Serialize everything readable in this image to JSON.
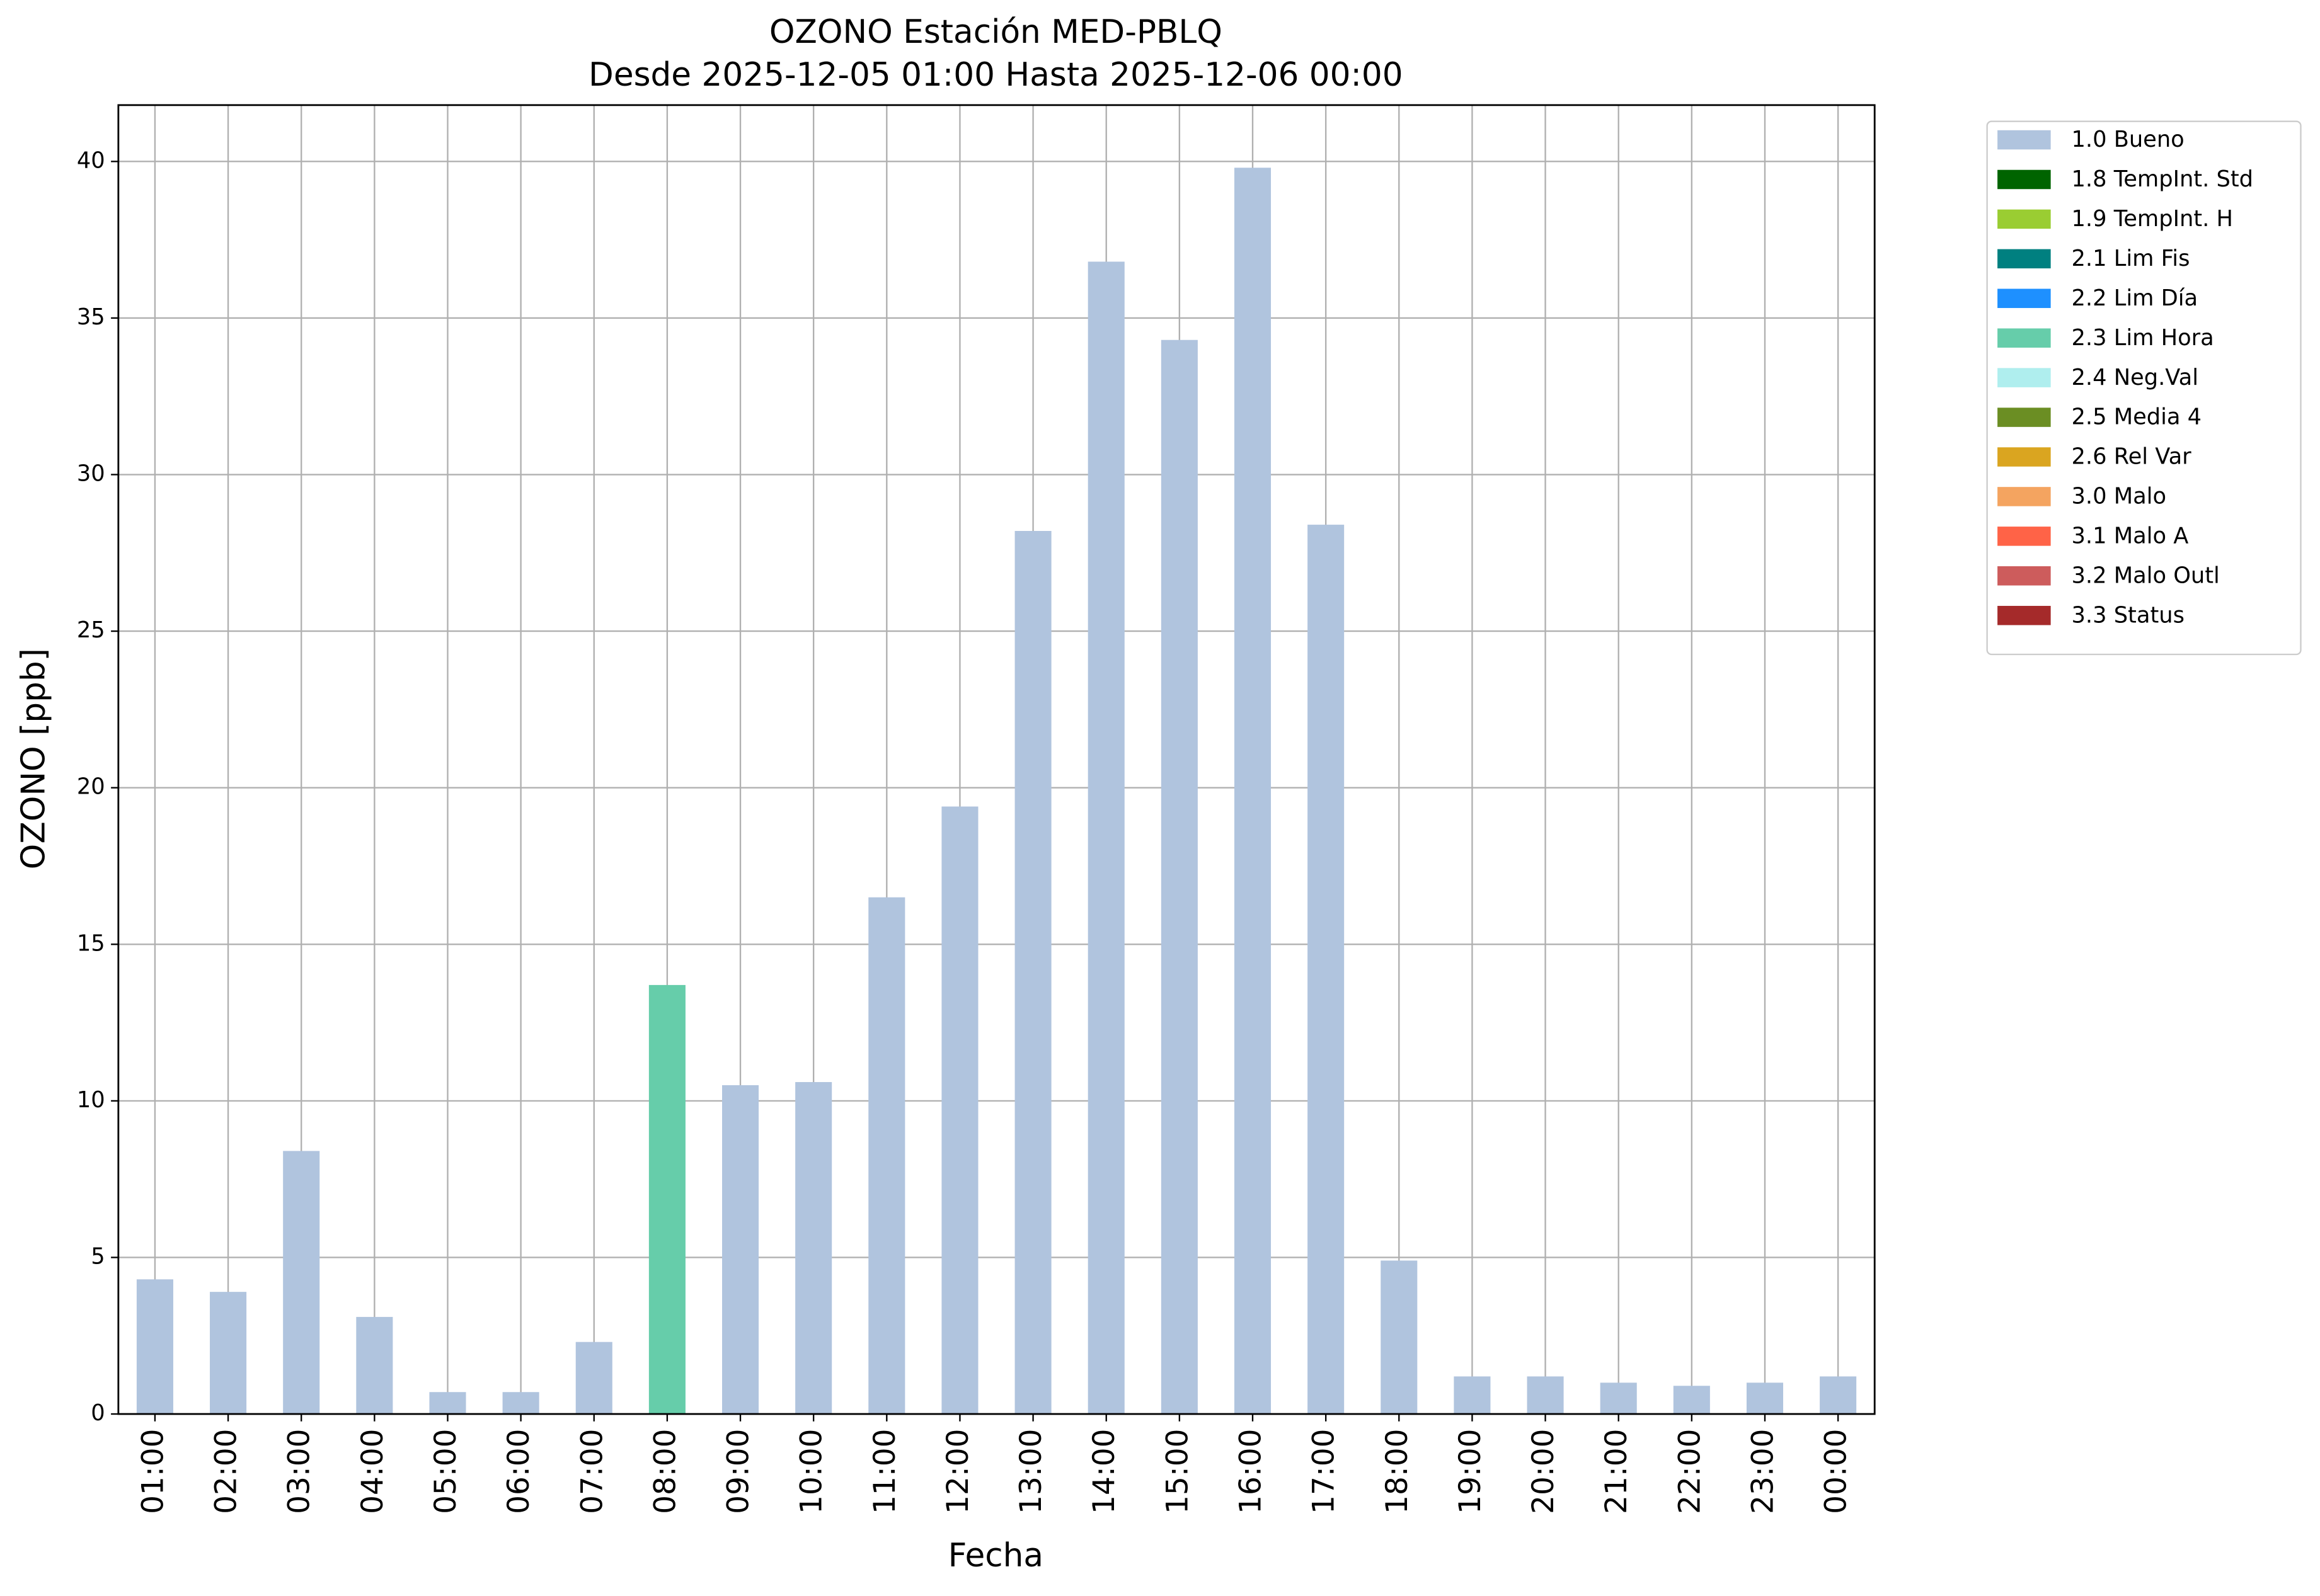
{
  "chart_data": {
    "type": "stacked_bar",
    "title": "OZONO Estación MED-PBLQ",
    "subtitle": "Desde 2025-12-05 01:00 Hasta 2025-12-06 00:00",
    "x_label": "Fecha",
    "y_label": "OZONO [ppb]",
    "categories": [
      "01:00",
      "02:00",
      "03:00",
      "04:00",
      "05:00",
      "06:00",
      "07:00",
      "08:00",
      "09:00",
      "10:00",
      "11:00",
      "12:00",
      "13:00",
      "14:00",
      "15:00",
      "16:00",
      "17:00",
      "18:00",
      "19:00",
      "20:00",
      "21:00",
      "22:00",
      "23:00",
      "00:00"
    ],
    "series": [
      {
        "name": "1.0 Bueno",
        "color": "#b0c4de",
        "values": [
          4.3,
          3.9,
          8.4,
          3.1,
          0.7,
          0.7,
          2.3,
          null,
          10.5,
          10.6,
          16.5,
          19.4,
          28.2,
          36.8,
          34.3,
          39.8,
          28.4,
          4.9,
          1.2,
          1.2,
          1.0,
          0.9,
          1.0,
          1.2
        ]
      },
      {
        "name": "1.8 TempInt. Std",
        "color": "#006400",
        "values": [
          null,
          null,
          null,
          null,
          null,
          null,
          null,
          null,
          null,
          null,
          null,
          null,
          null,
          null,
          null,
          null,
          null,
          null,
          null,
          null,
          null,
          null,
          null,
          null
        ]
      },
      {
        "name": "1.9 TempInt. H",
        "color": "#9acd32",
        "values": [
          null,
          null,
          null,
          null,
          null,
          null,
          null,
          null,
          null,
          null,
          null,
          null,
          null,
          null,
          null,
          null,
          null,
          null,
          null,
          null,
          null,
          null,
          null,
          null
        ]
      },
      {
        "name": "2.1 Lim Fis",
        "color": "#008080",
        "values": [
          null,
          null,
          null,
          null,
          null,
          null,
          null,
          null,
          null,
          null,
          null,
          null,
          null,
          null,
          null,
          null,
          null,
          null,
          null,
          null,
          null,
          null,
          null,
          null
        ]
      },
      {
        "name": "2.2 Lim Día",
        "color": "#1e90ff",
        "values": [
          null,
          null,
          null,
          null,
          null,
          null,
          null,
          null,
          null,
          null,
          null,
          null,
          null,
          null,
          null,
          null,
          null,
          null,
          null,
          null,
          null,
          null,
          null,
          null
        ]
      },
      {
        "name": "2.3 Lim Hora",
        "color": "#66cdaa",
        "values": [
          null,
          null,
          null,
          null,
          null,
          null,
          null,
          13.7,
          null,
          null,
          null,
          null,
          null,
          null,
          null,
          null,
          null,
          null,
          null,
          null,
          null,
          null,
          null,
          null
        ]
      },
      {
        "name": "2.4 Neg.Val",
        "color": "#afeeee",
        "values": [
          null,
          null,
          null,
          null,
          null,
          null,
          null,
          null,
          null,
          null,
          null,
          null,
          null,
          null,
          null,
          null,
          null,
          null,
          null,
          null,
          null,
          null,
          null,
          null
        ]
      },
      {
        "name": "2.5 Media 4",
        "color": "#6b8e23",
        "values": [
          null,
          null,
          null,
          null,
          null,
          null,
          null,
          null,
          null,
          null,
          null,
          null,
          null,
          null,
          null,
          null,
          null,
          null,
          null,
          null,
          null,
          null,
          null,
          null
        ]
      },
      {
        "name": "2.6 Rel Var",
        "color": "#daa520",
        "values": [
          null,
          null,
          null,
          null,
          null,
          null,
          null,
          null,
          null,
          null,
          null,
          null,
          null,
          null,
          null,
          null,
          null,
          null,
          null,
          null,
          null,
          null,
          null,
          null
        ]
      },
      {
        "name": "3.0 Malo",
        "color": "#f4a460",
        "values": [
          null,
          null,
          null,
          null,
          null,
          null,
          null,
          null,
          null,
          null,
          null,
          null,
          null,
          null,
          null,
          null,
          null,
          null,
          null,
          null,
          null,
          null,
          null,
          null
        ]
      },
      {
        "name": "3.1 Malo A",
        "color": "#ff6347",
        "values": [
          null,
          null,
          null,
          null,
          null,
          null,
          null,
          null,
          null,
          null,
          null,
          null,
          null,
          null,
          null,
          null,
          null,
          null,
          null,
          null,
          null,
          null,
          null,
          null
        ]
      },
      {
        "name": "3.2 Malo Outl",
        "color": "#cd5c5c",
        "values": [
          null,
          null,
          null,
          null,
          null,
          null,
          null,
          null,
          null,
          null,
          null,
          null,
          null,
          null,
          null,
          null,
          null,
          null,
          null,
          null,
          null,
          null,
          null,
          null
        ]
      },
      {
        "name": "3.3 Status",
        "color": "#a52a2a",
        "values": [
          null,
          null,
          null,
          null,
          null,
          null,
          null,
          null,
          null,
          null,
          null,
          null,
          null,
          null,
          null,
          null,
          null,
          null,
          null,
          null,
          null,
          null,
          null,
          null
        ]
      }
    ],
    "ylim": [
      0,
      41.8
    ],
    "yticks": [
      0,
      5,
      10,
      15,
      20,
      25,
      30,
      35,
      40
    ],
    "grid": true,
    "legend": "outside-right"
  }
}
